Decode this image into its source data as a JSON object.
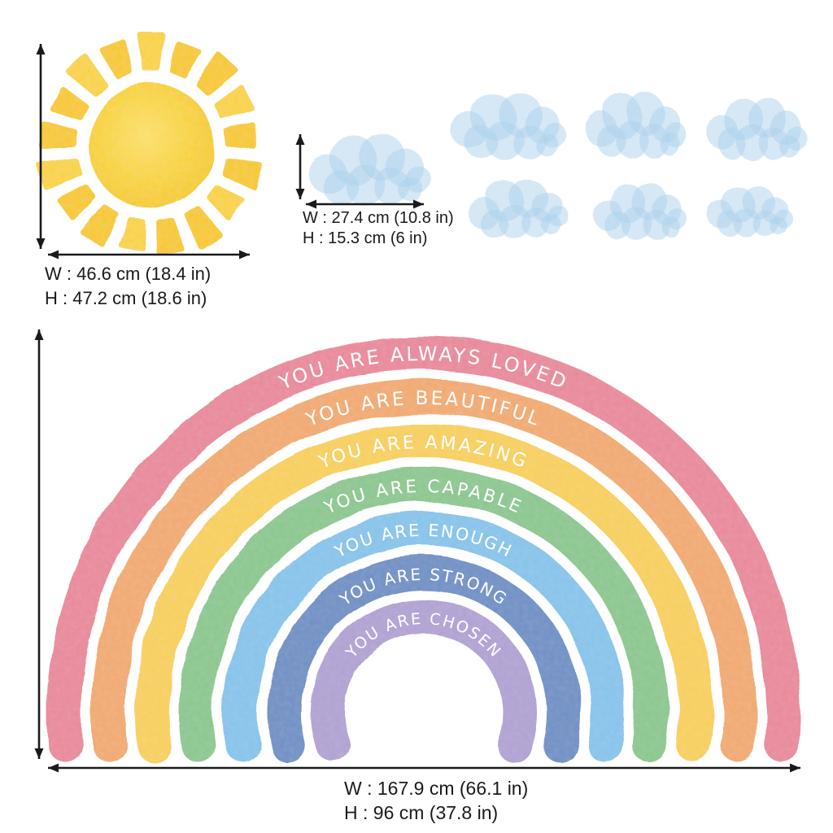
{
  "sheet": {
    "background_color": "#ffffff",
    "annotation_color": "#1a1a1a"
  },
  "sun": {
    "width_label": "W : 46.6 cm (18.4 in)",
    "height_label": "H : 47.2 cm (18.6 in)",
    "body_color": "#f8d02e",
    "ray_color": "#f7c826"
  },
  "cloud": {
    "width_label": "W : 27.4 cm (10.8 in)",
    "height_label": "H : 15.3 cm (6 in)",
    "color": "#a9cfec",
    "additional_cloud_count": 6
  },
  "rainbow": {
    "width_label": "W : 167.9 cm (66.1 in)",
    "height_label": "H : 96 cm (37.8 in)",
    "text_color": "#ffffff",
    "arcs": [
      {
        "label": "YOU ARE ALWAYS LOVED",
        "color": "#e8879a"
      },
      {
        "label": "YOU ARE BEAUTIFUL",
        "color": "#f1a96e"
      },
      {
        "label": "YOU ARE AMAZING",
        "color": "#f7cf58"
      },
      {
        "label": "YOU ARE CAPABLE",
        "color": "#8ac68e"
      },
      {
        "label": "YOU ARE ENOUGH",
        "color": "#85c3ea"
      },
      {
        "label": "YOU ARE STRONG",
        "color": "#6d8ec4"
      },
      {
        "label": "YOU ARE CHOSEN",
        "color": "#b0a0d2"
      }
    ]
  }
}
